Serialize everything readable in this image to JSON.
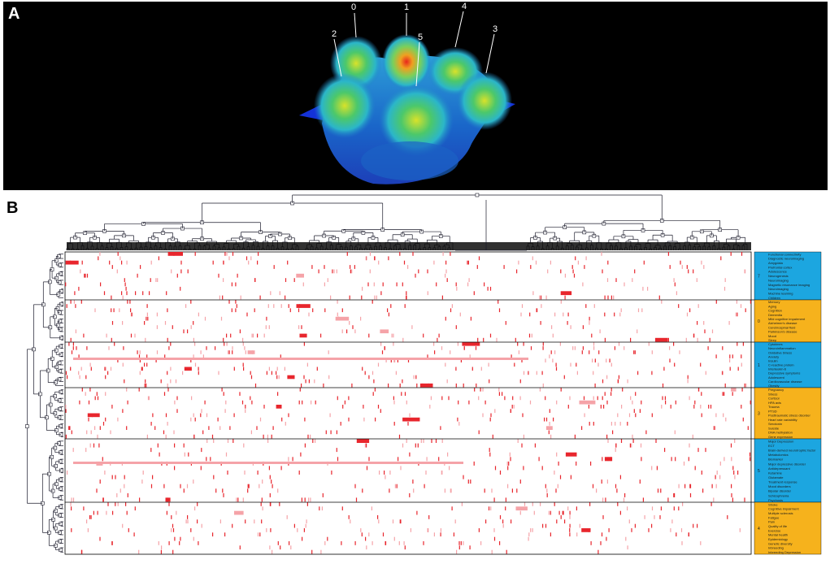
{
  "panel_a": {
    "letter": "A",
    "peaks": [
      {
        "label": "0"
      },
      {
        "label": "1"
      },
      {
        "label": "4"
      },
      {
        "label": "2"
      },
      {
        "label": "5"
      },
      {
        "label": "3"
      }
    ]
  },
  "panel_b": {
    "letter": "B",
    "clusters": [
      {
        "number": "7",
        "color": "#1ca6e0",
        "terms": [
          "Functional connectivity",
          "Diagnostic neuroimaging",
          "Amygdala",
          "Prefrontal cortex",
          "Adolescence",
          "Neurogenesis",
          "Neuroimaging",
          "Magnetic resonance imaging",
          "Neuroimaging",
          "Machine learning",
          "Children"
        ]
      },
      {
        "number": "0",
        "color": "#f6b21c",
        "terms": [
          "Memory",
          "Aging",
          "Cognition",
          "Dementia",
          "Mild cognitive impairment",
          "Alzheimer's disease",
          "Cerebrospinal fluid",
          "Parkinson's disease",
          "Mood",
          "Sleep"
        ]
      },
      {
        "number": "1",
        "color": "#1ca6e0",
        "terms": [
          "Cytokines",
          "Neuroinflammation",
          "Oxidative Stress",
          "Anxiety",
          "Insulin",
          "C-reactive protein",
          "Interleukin-6",
          "Depressive symptoms",
          "Adolescent",
          "Cardiovascular disease",
          "Obesity"
        ]
      },
      {
        "number": "3",
        "color": "#f6b21c",
        "terms": [
          "Pregnancy",
          "Stress",
          "Cortisol",
          "HPA axis",
          "Trauma",
          "PTSD",
          "Posttraumatic stress disorder",
          "Heart rate variability",
          "Serotonin",
          "Suicide",
          "DNA methylation",
          "Gene expression"
        ]
      },
      {
        "number": "5",
        "color": "#1ca6e0",
        "terms": [
          "Major Depression",
          "ECT",
          "Brain-derived neurotrophic factor",
          "Metabolomics",
          "Biomarker",
          "Major depressive disorder",
          "Antidepressant",
          "Ketamine",
          "Glutamate",
          "Treatment response",
          "Mood disorders",
          "Bipolar disorder",
          "Schizophrenia",
          "Psychosis"
        ]
      },
      {
        "number": "4",
        "color": "#f6b21c",
        "terms": [
          "Stroke",
          "Cognitive impairment",
          "Multiple sclerosis",
          "Fatigue",
          "Pain",
          "Quality of life",
          "Exercise",
          "Mental health",
          "Epidemiology",
          "Genetic diversity",
          "Inbreeding",
          "Inbreeding Depression"
        ]
      }
    ]
  },
  "colors": {
    "heat_strong": "#e8262d",
    "heat_light": "#f5a3a8",
    "legend_blue": "#1ca6e0",
    "legend_orange": "#f6b21c"
  }
}
